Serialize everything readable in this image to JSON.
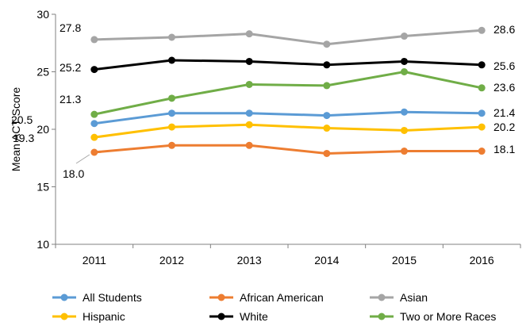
{
  "chart_data": {
    "type": "line",
    "title": "",
    "xlabel": "",
    "ylabel": "Mean ACT Score",
    "ylim": [
      10,
      30
    ],
    "yticks": [
      10,
      15,
      20,
      25,
      30
    ],
    "categories": [
      "2011",
      "2012",
      "2013",
      "2014",
      "2015",
      "2016"
    ],
    "grid": false,
    "legend_position": "bottom",
    "series": [
      {
        "name": "All Students",
        "color": "#5B9BD5",
        "values": [
          20.5,
          21.4,
          21.4,
          21.2,
          21.5,
          21.4
        ]
      },
      {
        "name": "African American",
        "color": "#ED7D31",
        "values": [
          18.0,
          18.6,
          18.6,
          17.9,
          18.1,
          18.1
        ]
      },
      {
        "name": "Asian",
        "color": "#A5A5A5",
        "values": [
          27.8,
          28.0,
          28.3,
          27.4,
          28.1,
          28.6
        ]
      },
      {
        "name": "Hispanic",
        "color": "#FFC000",
        "values": [
          19.3,
          20.2,
          20.4,
          20.1,
          19.9,
          20.2
        ]
      },
      {
        "name": "White",
        "color": "#000000",
        "values": [
          25.2,
          26.0,
          25.9,
          25.6,
          25.9,
          25.6
        ]
      },
      {
        "name": "Two or More Races",
        "color": "#70AD47",
        "values": [
          21.3,
          22.7,
          23.9,
          23.8,
          25.0,
          23.6
        ]
      }
    ],
    "data_labels": {
      "start": [
        "20.5",
        "18.0",
        "27.8",
        "19.3",
        "25.2",
        "21.3"
      ],
      "end": [
        "21.4",
        "18.1",
        "28.6",
        "20.2",
        "25.6",
        "23.6"
      ]
    }
  }
}
